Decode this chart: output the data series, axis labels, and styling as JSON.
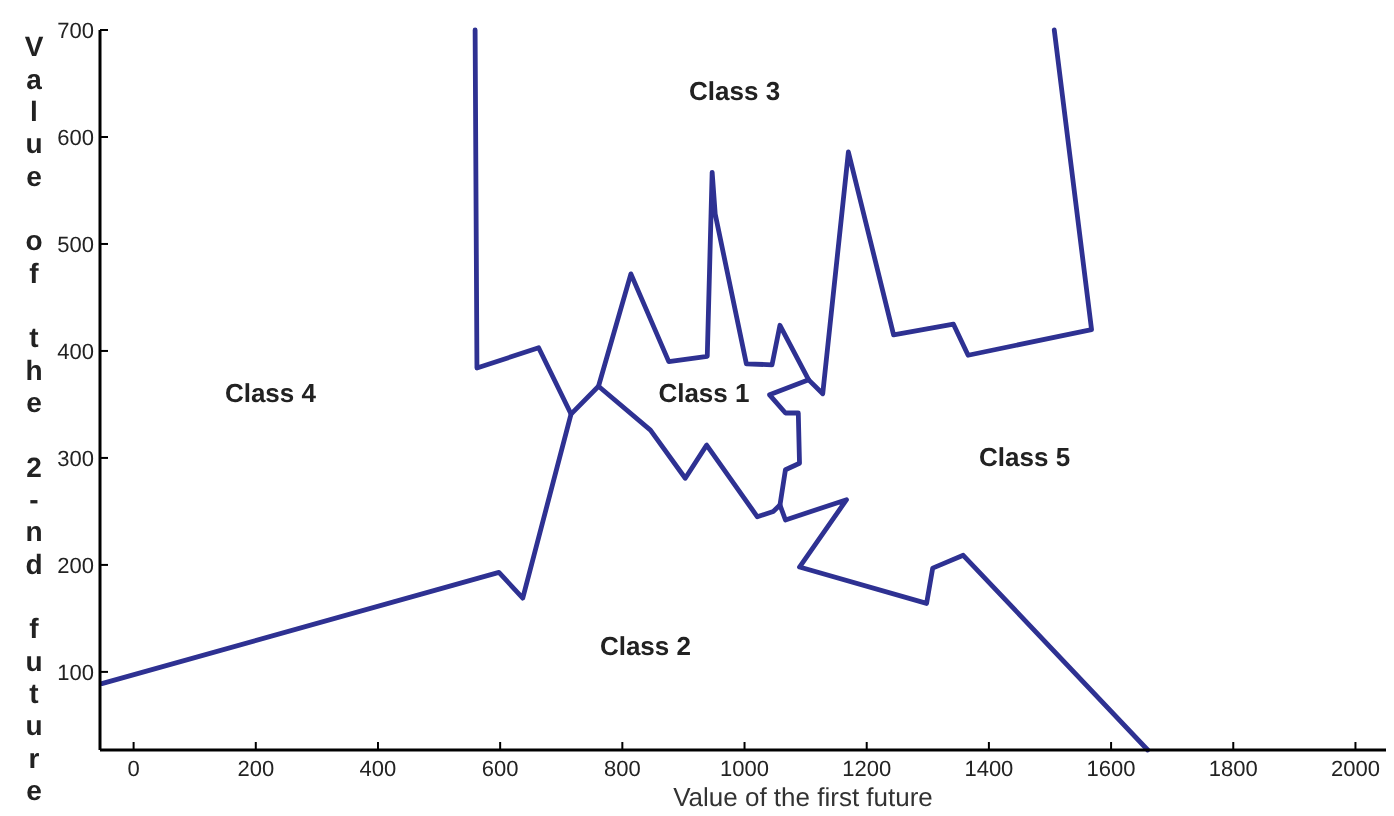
{
  "chart_data": {
    "type": "line",
    "xlabel": "Value of the first future",
    "ylabel": "Value of the 2-nd future",
    "xlim": [
      -55,
      2050
    ],
    "ylim": [
      27,
      700
    ],
    "xticks": [
      0,
      200,
      400,
      600,
      800,
      1000,
      1200,
      1400,
      1600,
      1800,
      2000
    ],
    "yticks": [
      100,
      200,
      300,
      400,
      500,
      600,
      700
    ],
    "grid": false,
    "marker": "none",
    "line_style": "solid",
    "series": [
      {
        "color": "#2e3192",
        "x": [
          -52,
          598,
          637,
          716,
          761,
          814,
          876,
          939,
          947,
          952,
          1003,
          1045,
          1058,
          1105,
          1128,
          1170,
          1244,
          1342,
          1366,
          1568,
          1507
        ],
        "values": [
          89,
          193,
          169,
          341,
          367,
          472,
          390,
          395,
          567,
          528,
          388,
          387,
          424,
          373,
          360,
          586,
          415,
          425,
          396,
          420,
          700
        ]
      },
      {
        "color": "#2e3192",
        "x": [
          559,
          562,
          663,
          716
        ],
        "values": [
          700,
          384,
          403,
          341
        ]
      },
      {
        "color": "#2e3192",
        "x": [
          1105,
          1041,
          1067,
          1088,
          1090,
          1067,
          1058,
          1047,
          1021,
          938,
          903,
          846,
          761
        ],
        "values": [
          373,
          359,
          342,
          342,
          295,
          289,
          256,
          250,
          245,
          312,
          281,
          326,
          367
        ]
      },
      {
        "color": "#2e3192",
        "x": [
          1058,
          1067,
          1167,
          1090,
          1298,
          1308,
          1358,
          1660
        ],
        "values": [
          256,
          242,
          261,
          198,
          164,
          197,
          209,
          27
        ]
      }
    ],
    "annotations": [
      "Class 3",
      "Class 4",
      "Class 1",
      "Class 5",
      "Class 2"
    ]
  }
}
